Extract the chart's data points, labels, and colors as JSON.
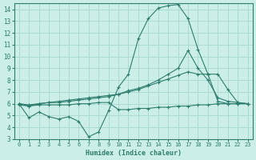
{
  "line1_x": [
    0,
    1,
    2,
    3,
    4,
    5,
    6,
    7,
    8,
    9,
    10,
    11,
    12,
    13,
    14,
    15,
    16,
    17,
    18,
    19,
    20,
    21,
    22,
    23
  ],
  "line1_y": [
    6.0,
    4.8,
    5.3,
    4.9,
    4.7,
    4.9,
    4.5,
    3.2,
    3.6,
    5.4,
    7.4,
    8.5,
    11.5,
    13.2,
    14.1,
    14.3,
    14.4,
    13.2,
    10.6,
    8.5,
    6.2,
    6.0,
    6.0,
    6.0
  ],
  "line2_x": [
    0,
    1,
    2,
    3,
    4,
    5,
    6,
    7,
    8,
    9,
    10,
    11,
    12,
    13,
    14,
    15,
    16,
    17,
    18,
    19,
    20,
    21,
    22,
    23
  ],
  "line2_y": [
    6.0,
    5.8,
    6.0,
    6.1,
    6.1,
    6.2,
    6.3,
    6.4,
    6.5,
    6.6,
    6.8,
    7.0,
    7.2,
    7.5,
    7.8,
    8.1,
    8.4,
    8.7,
    8.5,
    8.5,
    8.5,
    7.2,
    6.1,
    6.0
  ],
  "line3_x": [
    0,
    1,
    2,
    3,
    4,
    5,
    6,
    7,
    8,
    9,
    10,
    11,
    12,
    13,
    14,
    15,
    16,
    17,
    18,
    19,
    20,
    21,
    22,
    23
  ],
  "line3_y": [
    6.0,
    5.9,
    6.0,
    6.1,
    6.2,
    6.3,
    6.4,
    6.5,
    6.6,
    6.7,
    6.8,
    7.1,
    7.3,
    7.6,
    8.0,
    8.5,
    9.0,
    10.5,
    9.0,
    8.0,
    6.5,
    6.2,
    6.1,
    6.0
  ],
  "line4_x": [
    0,
    1,
    2,
    3,
    4,
    5,
    6,
    7,
    8,
    9,
    10,
    11,
    12,
    13,
    14,
    15,
    16,
    17,
    18,
    19,
    20,
    21,
    22,
    23
  ],
  "line4_y": [
    5.9,
    5.8,
    5.9,
    5.9,
    5.9,
    5.9,
    6.0,
    6.0,
    6.1,
    6.1,
    5.5,
    5.5,
    5.6,
    5.6,
    5.7,
    5.7,
    5.8,
    5.8,
    5.9,
    5.9,
    6.0,
    6.0,
    6.0,
    6.0
  ],
  "color": "#2e7d6e",
  "bg_color": "#cceee8",
  "grid_color": "#a8d8d0",
  "xlabel": "Humidex (Indice chaleur)",
  "ylim": [
    3,
    14.5
  ],
  "xlim": [
    -0.5,
    23.5
  ],
  "yticks": [
    3,
    4,
    5,
    6,
    7,
    8,
    9,
    10,
    11,
    12,
    13,
    14
  ],
  "xticks": [
    0,
    1,
    2,
    3,
    4,
    5,
    6,
    7,
    8,
    9,
    10,
    11,
    12,
    13,
    14,
    15,
    16,
    17,
    18,
    19,
    20,
    21,
    22,
    23
  ]
}
